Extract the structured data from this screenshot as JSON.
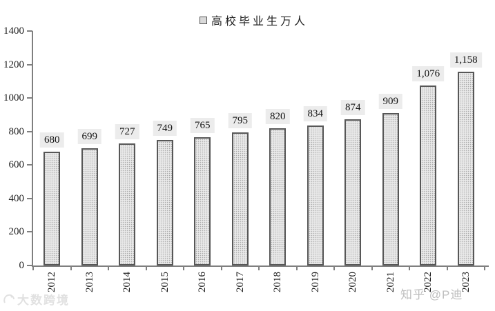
{
  "chart_data": {
    "type": "bar",
    "title": "",
    "legend": "高校毕业生万人",
    "legend_position": "top-center",
    "categories": [
      "2012",
      "2013",
      "2014",
      "2015",
      "2016",
      "2017",
      "2018",
      "2019",
      "2020",
      "2021",
      "2022",
      "2023"
    ],
    "values": [
      680,
      699,
      727,
      749,
      765,
      795,
      820,
      834,
      874,
      909,
      1076,
      1158
    ],
    "value_labels": [
      "680",
      "699",
      "727",
      "749",
      "765",
      "795",
      "820",
      "834",
      "874",
      "909",
      "1,076",
      "1,158"
    ],
    "xlabel": "",
    "ylabel": "",
    "ylim": [
      0,
      1400
    ],
    "y_ticks": [
      0,
      200,
      400,
      600,
      800,
      1000,
      1200,
      1400
    ],
    "grid": false,
    "colors": {
      "bar_fill": "#e9e9e9",
      "bar_dot": "#a9a9a9",
      "bar_border": "#575757",
      "axis": "#7f7f7f",
      "value_label_bg": "#ececec",
      "text": "#1c1c1c"
    }
  },
  "watermarks": {
    "left": "大数跨境",
    "right": "知乎 @P迪"
  }
}
